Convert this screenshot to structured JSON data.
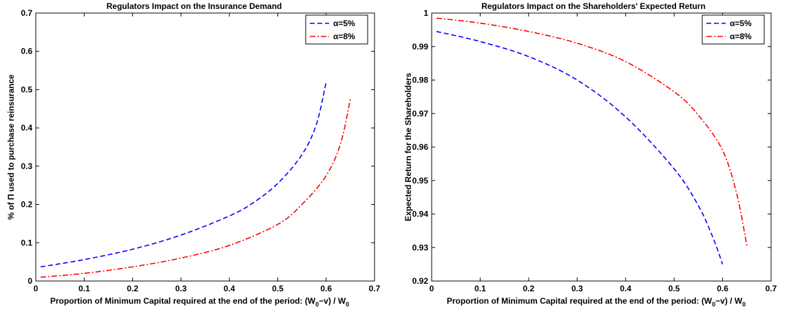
{
  "chart_data": [
    {
      "type": "line",
      "title": "Regulators Impact on the Insurance Demand",
      "xlabel": {
        "prefix": "Proportion of Minimum Capital required at the end of the period: (W",
        "sub1": "0",
        "mid": "−v) / W",
        "sub2": "0"
      },
      "ylabel": "% of Π used to purchase reinsurance",
      "xlim": [
        0,
        0.7
      ],
      "ylim": [
        0,
        0.7
      ],
      "xticks": [
        "0",
        "0.1",
        "0.2",
        "0.3",
        "0.4",
        "0.5",
        "0.6",
        "0.7"
      ],
      "yticks": [
        "0",
        "0.1",
        "0.2",
        "0.3",
        "0.4",
        "0.5",
        "0.6",
        "0.7"
      ],
      "legend_position": "top-right",
      "series": [
        {
          "name": "α=5%",
          "color": "#0000ff",
          "dash": "dashed",
          "x": [
            0.01,
            0.1,
            0.2,
            0.3,
            0.4,
            0.45,
            0.5,
            0.55,
            0.58,
            0.6
          ],
          "y": [
            0.037,
            0.056,
            0.083,
            0.12,
            0.17,
            0.205,
            0.255,
            0.33,
            0.41,
            0.52
          ]
        },
        {
          "name": "α=8%",
          "color": "#ff0000",
          "dash": "dashdot",
          "x": [
            0.01,
            0.1,
            0.2,
            0.3,
            0.4,
            0.5,
            0.55,
            0.6,
            0.63,
            0.65
          ],
          "y": [
            0.01,
            0.02,
            0.037,
            0.06,
            0.093,
            0.148,
            0.2,
            0.275,
            0.36,
            0.475
          ]
        }
      ]
    },
    {
      "type": "line",
      "title": "Regulators Impact on the Shareholders' Expected Return",
      "xlabel": {
        "prefix": "Proportion of Minimum Capital required at the end of the period: (W",
        "sub1": "0",
        "mid": "−v) / W",
        "sub2": "0"
      },
      "ylabel": "Expected Return for the Shareholders",
      "xlim": [
        0,
        0.7
      ],
      "ylim": [
        0.92,
        1
      ],
      "xticks": [
        "0",
        "0.1",
        "0.2",
        "0.3",
        "0.4",
        "0.5",
        "0.6",
        "0.7"
      ],
      "yticks": [
        "0.92",
        "0.93",
        "0.94",
        "0.95",
        "0.96",
        "0.97",
        "0.98",
        "0.99",
        "1"
      ],
      "legend_position": "top-right",
      "series": [
        {
          "name": "α=5%",
          "color": "#0000ff",
          "dash": "dashed",
          "x": [
            0.01,
            0.1,
            0.2,
            0.3,
            0.4,
            0.5,
            0.55,
            0.58,
            0.6
          ],
          "y": [
            0.9945,
            0.9915,
            0.987,
            0.98,
            0.969,
            0.9535,
            0.9425,
            0.933,
            0.925
          ]
        },
        {
          "name": "α=8%",
          "color": "#ff0000",
          "dash": "dashdot",
          "x": [
            0.01,
            0.1,
            0.2,
            0.3,
            0.4,
            0.5,
            0.55,
            0.6,
            0.63,
            0.65
          ],
          "y": [
            0.9985,
            0.997,
            0.9945,
            0.991,
            0.9855,
            0.9765,
            0.9695,
            0.959,
            0.9455,
            0.9305
          ]
        }
      ]
    }
  ]
}
